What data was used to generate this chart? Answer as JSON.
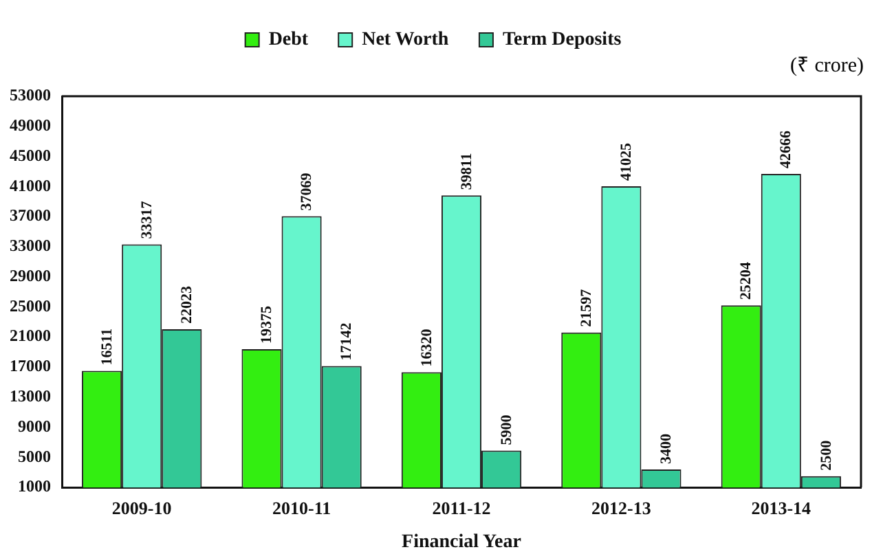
{
  "chart_data": {
    "type": "bar",
    "xlabel": "Financial Year",
    "ylabel": "(₹ crore)",
    "categories": [
      "2009-10",
      "2010-11",
      "2011-12",
      "2012-13",
      "2013-14"
    ],
    "series": [
      {
        "name": "Debt",
        "color": "#33ee11",
        "values": [
          16511,
          19375,
          16320,
          21597,
          25204
        ]
      },
      {
        "name": "Net Worth",
        "color": "#66f5cc",
        "values": [
          33317,
          37069,
          39811,
          41025,
          42666
        ]
      },
      {
        "name": "Term Deposits",
        "color": "#33c896",
        "values": [
          22023,
          17142,
          5900,
          3400,
          2500
        ]
      }
    ],
    "ylim": [
      1000,
      53000
    ],
    "yticks": [
      1000,
      5000,
      9000,
      13000,
      17000,
      21000,
      25000,
      29000,
      33000,
      37000,
      41000,
      45000,
      49000,
      53000
    ],
    "data_labels": true,
    "legend": "top",
    "grid": false
  }
}
